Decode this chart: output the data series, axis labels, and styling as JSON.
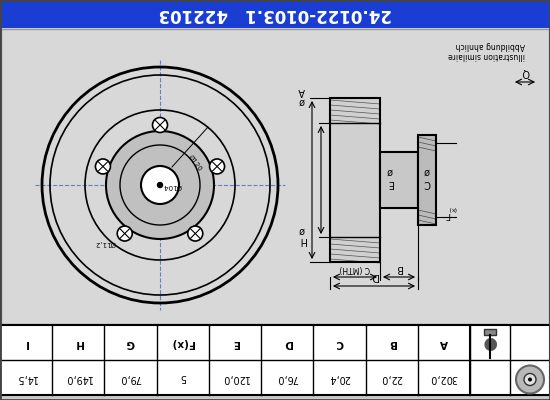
{
  "title": "24.0122-0103.1   422103",
  "title_bg": "#1a3ed4",
  "title_color": "#ffffff",
  "bg_color": "#c8c8c8",
  "diagram_bg": "#d8d8d8",
  "table_bg": "#ffffff",
  "table_headers": [
    "A",
    "B",
    "C",
    "D",
    "E",
    "F(x)",
    "G",
    "H",
    "I"
  ],
  "table_values": [
    "302,0",
    "22,0",
    "20,4",
    "76,0",
    "120,0",
    "5",
    "79,0",
    "149,0",
    "14,5"
  ],
  "note_line1": "illustration similaire",
  "note_line2": "Abbildung ahnlich",
  "title_fontsize": 12,
  "table_fontsize": 7.5
}
